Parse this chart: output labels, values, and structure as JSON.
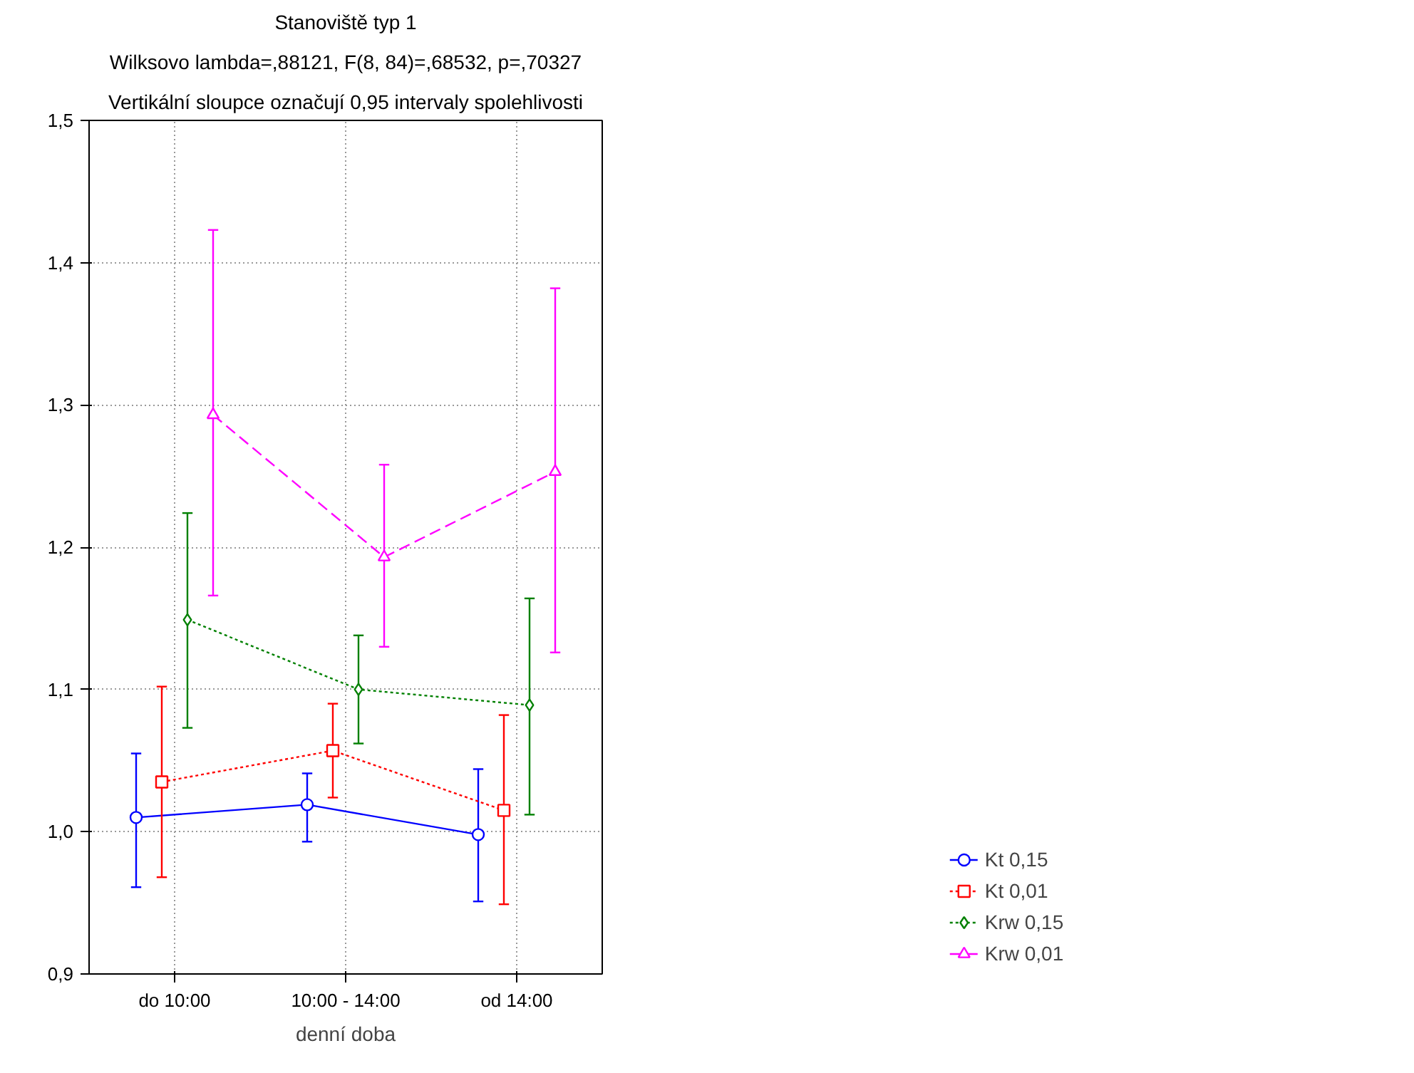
{
  "chart_data": {
    "type": "line",
    "title": "Stanoviště typ 1",
    "subtitle": "Wilksovo lambda=,88121, F(8, 84)=,68532, p=,70327",
    "annotations": [
      "Vertikální sloupce označují 0,95 intervaly spolehlivosti"
    ],
    "xlabel": "denní doba",
    "categories": [
      "do 10:00",
      "10:00 - 14:00",
      "od 14:00"
    ],
    "series": [
      {
        "name": "Kt 0,15",
        "color": "#0000ff",
        "marker": "circle",
        "line_style": "solid",
        "values": [
          1.01,
          1.019,
          0.998
        ],
        "errors": [
          [
            0.961,
            1.055
          ],
          [
            0.993,
            1.041
          ],
          [
            0.951,
            1.044
          ]
        ]
      },
      {
        "name": "Kt 0,01",
        "color": "#ff0000",
        "marker": "square",
        "line_style": "dotted",
        "values": [
          1.035,
          1.057,
          1.015
        ],
        "errors": [
          [
            0.968,
            1.102
          ],
          [
            1.024,
            1.09
          ],
          [
            0.949,
            1.082
          ]
        ]
      },
      {
        "name": "Krw 0,15",
        "color": "#008000",
        "marker": "diamond",
        "line_style": "dotted",
        "values": [
          1.149,
          1.1,
          1.089
        ],
        "errors": [
          [
            1.073,
            1.224
          ],
          [
            1.062,
            1.138
          ],
          [
            1.012,
            1.164
          ]
        ]
      },
      {
        "name": "Krw 0,01",
        "color": "#ff00ff",
        "marker": "triangle",
        "line_style": "dashed",
        "values": [
          1.293,
          1.193,
          1.253
        ],
        "errors": [
          [
            1.166,
            1.423
          ],
          [
            1.13,
            1.258
          ],
          [
            1.126,
            1.382
          ]
        ]
      }
    ],
    "ylim": [
      0.9,
      1.5
    ],
    "yticks": [
      {
        "value": 0.9,
        "label": "0,9"
      },
      {
        "value": 1.0,
        "label": "1,0"
      },
      {
        "value": 1.1,
        "label": "1,1"
      },
      {
        "value": 1.2,
        "label": "1,2"
      },
      {
        "value": 1.3,
        "label": "1,3"
      },
      {
        "value": 1.4,
        "label": "1,4"
      },
      {
        "value": 1.5,
        "label": "1,5"
      }
    ],
    "grid": true,
    "legend": "bottom right"
  }
}
